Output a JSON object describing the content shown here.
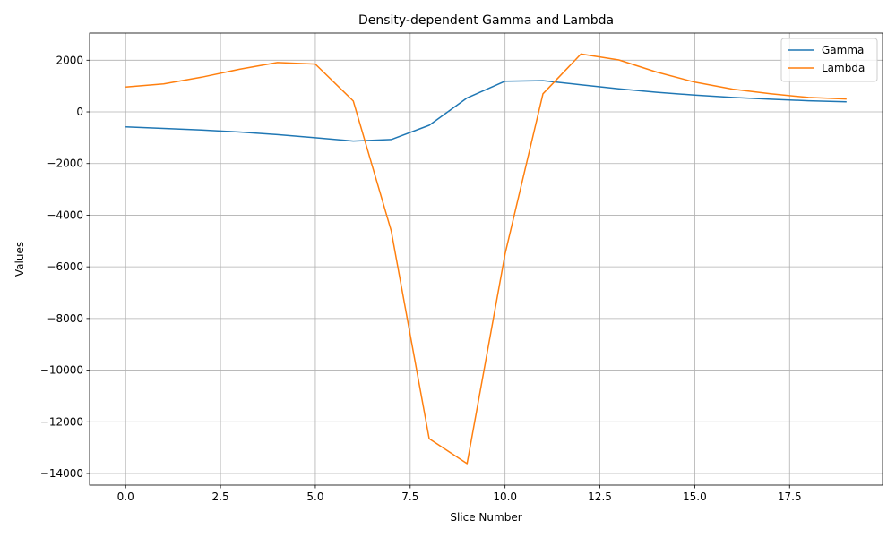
{
  "chart_data": {
    "type": "line",
    "title": "Density-dependent Gamma and Lambda",
    "xlabel": "Slice Number",
    "ylabel": "Values",
    "xlim": [
      -0.95,
      19.95
    ],
    "ylim": [
      -14450,
      3050
    ],
    "grid": true,
    "legend_position": "top-right",
    "x": [
      0,
      1,
      2,
      3,
      4,
      5,
      6,
      7,
      8,
      9,
      10,
      11,
      12,
      13,
      14,
      15,
      16,
      17,
      18,
      19
    ],
    "x_ticks": [
      0.0,
      2.5,
      5.0,
      7.5,
      10.0,
      12.5,
      15.0,
      17.5
    ],
    "x_tick_labels": [
      "0.0",
      "2.5",
      "5.0",
      "7.5",
      "10.0",
      "12.5",
      "15.0",
      "17.5"
    ],
    "y_ticks": [
      -14000,
      -12000,
      -10000,
      -8000,
      -6000,
      -4000,
      -2000,
      0,
      2000
    ],
    "y_tick_labels": [
      "−14000",
      "−12000",
      "−10000",
      "−8000",
      "−6000",
      "−4000",
      "−2000",
      "0",
      "2000"
    ],
    "series": [
      {
        "name": "Gamma",
        "color": "#1f77b4",
        "values": [
          -580,
          -640,
          -700,
          -780,
          -880,
          -1000,
          -1130,
          -1070,
          -520,
          540,
          1190,
          1210,
          1050,
          890,
          760,
          650,
          560,
          490,
          430,
          390
        ]
      },
      {
        "name": "Lambda",
        "color": "#ff7f0e",
        "values": [
          960,
          1080,
          1340,
          1650,
          1910,
          1850,
          420,
          -4600,
          -12650,
          -13620,
          -5500,
          700,
          2240,
          2010,
          1540,
          1150,
          880,
          700,
          560,
          500
        ]
      }
    ]
  }
}
